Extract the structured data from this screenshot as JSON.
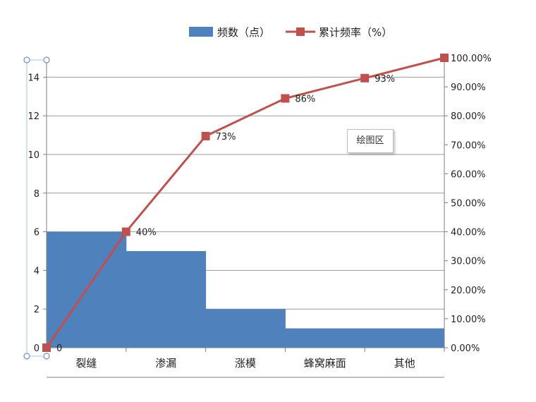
{
  "chart_data": {
    "type": "bar",
    "categories": [
      "裂缝",
      "渗漏",
      "涨模",
      "蜂窝麻面",
      "其他"
    ],
    "series": [
      {
        "name": "频数（点）",
        "type": "bar",
        "axis": "left",
        "color": "#4F81BD",
        "values": [
          6,
          5,
          2,
          1,
          1
        ]
      },
      {
        "name": "累计频率（%）",
        "type": "line",
        "axis": "right",
        "color": "#C0504D",
        "x": [
          0,
          1,
          2,
          3,
          4,
          5
        ],
        "values": [
          0,
          40,
          73,
          86,
          93,
          100
        ],
        "data_labels": [
          "0",
          "40%",
          "73%",
          "86%",
          "93%",
          ""
        ]
      }
    ],
    "left_axis": {
      "ylim": [
        0,
        15
      ],
      "ticks": [
        0,
        2,
        4,
        6,
        8,
        10,
        12,
        14
      ],
      "tick_labels": [
        "0",
        "2",
        "4",
        "6",
        "8",
        "10",
        "12",
        "14"
      ]
    },
    "right_axis": {
      "ylim": [
        0,
        100
      ],
      "ticks": [
        0,
        10,
        20,
        30,
        40,
        50,
        60,
        70,
        80,
        90,
        100
      ],
      "tick_labels": [
        "0.00%",
        "10.00%",
        "20.00%",
        "30.00%",
        "40.00%",
        "50.00%",
        "60.00%",
        "70.00%",
        "80.00%",
        "90.00%",
        "100.00%"
      ]
    },
    "grid": true,
    "legend": "top",
    "tooltip": "绘图区"
  }
}
